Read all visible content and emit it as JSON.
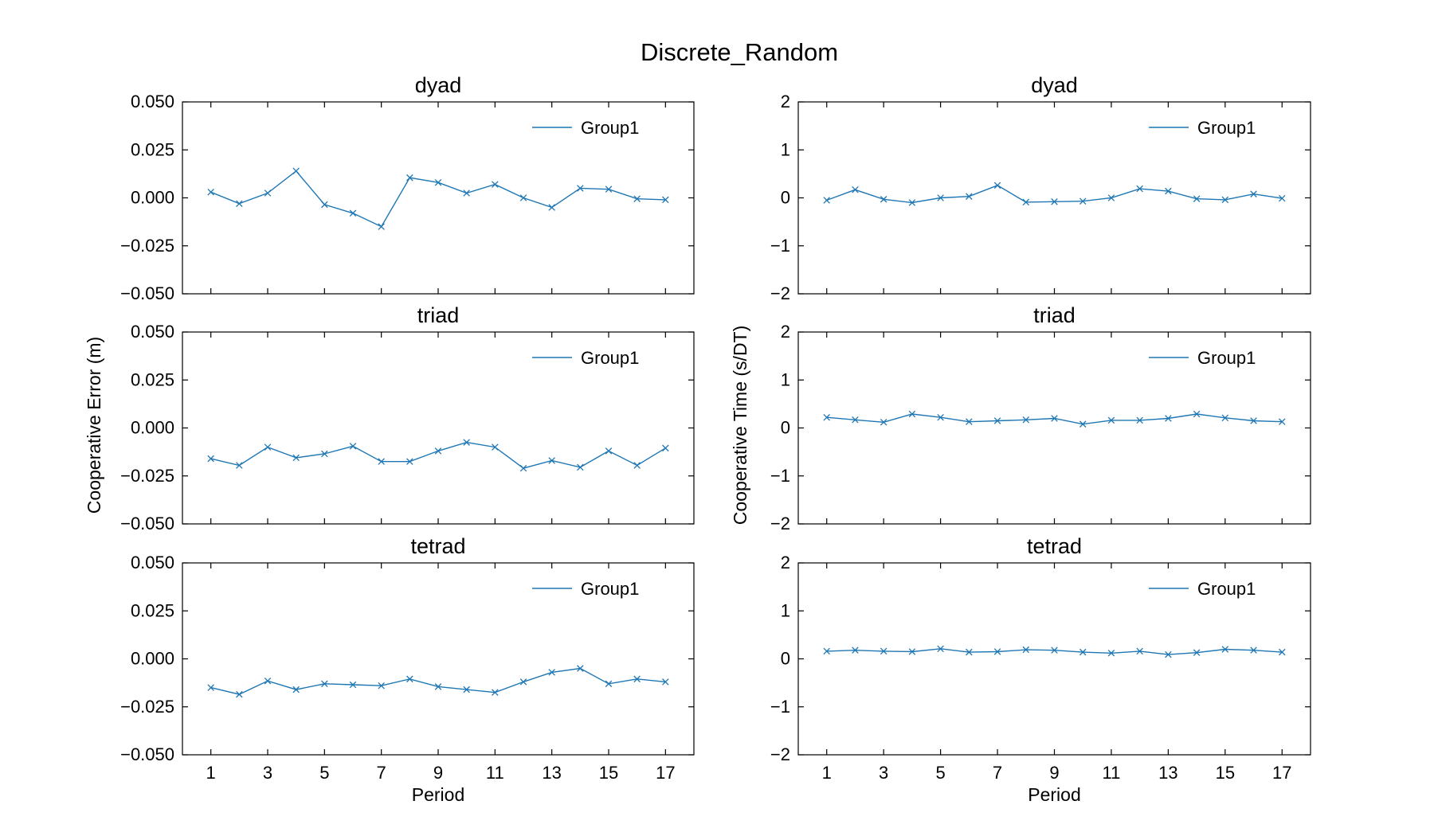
{
  "figure": {
    "title": "Discrete_Random",
    "left_ylabel": "Cooperative Error (m)",
    "right_ylabel": "Cooperative Time (s/DT)",
    "xlabel": "Period"
  },
  "colors": {
    "series": "#1f77b4",
    "axes": "#000000",
    "background": "#ffffff"
  },
  "chart_data": [
    {
      "type": "line",
      "title": "dyad",
      "ylabel": "Cooperative Error (m)",
      "xlabel": "",
      "ylim": [
        -0.05,
        0.05
      ],
      "yticks": [
        0.05,
        0.025,
        0.0,
        -0.025,
        -0.05
      ],
      "ytick_labels": [
        "0.050",
        "0.025",
        "0.000",
        "−0.025",
        "−0.050"
      ],
      "xlim": [
        0,
        18
      ],
      "xticks": [
        1,
        3,
        5,
        7,
        9,
        11,
        13,
        15,
        17
      ],
      "show_xtick_labels": false,
      "grid": false,
      "legend": "top-right",
      "marker": "x",
      "series": [
        {
          "name": "Group1",
          "x": [
            1,
            2,
            3,
            4,
            5,
            6,
            7,
            8,
            9,
            10,
            11,
            12,
            13,
            14,
            15,
            16,
            17
          ],
          "y": [
            0.003,
            -0.003,
            0.0025,
            0.014,
            -0.0035,
            -0.008,
            -0.015,
            0.0105,
            0.008,
            0.0025,
            0.007,
            0.0,
            -0.005,
            0.005,
            0.0045,
            -0.0005,
            -0.001
          ]
        }
      ]
    },
    {
      "type": "line",
      "title": "dyad",
      "ylabel": "Cooperative Time (s/DT)",
      "xlabel": "",
      "ylim": [
        -2,
        2
      ],
      "yticks": [
        2,
        1,
        0,
        -1,
        -2
      ],
      "ytick_labels": [
        "2",
        "1",
        "0",
        "−1",
        "−2"
      ],
      "xlim": [
        0,
        18
      ],
      "xticks": [
        1,
        3,
        5,
        7,
        9,
        11,
        13,
        15,
        17
      ],
      "show_xtick_labels": false,
      "grid": false,
      "legend": "top-right",
      "marker": "x",
      "series": [
        {
          "name": "Group1",
          "x": [
            1,
            2,
            3,
            4,
            5,
            6,
            7,
            8,
            9,
            10,
            11,
            12,
            13,
            14,
            15,
            16,
            17
          ],
          "y": [
            -0.05,
            0.17,
            -0.03,
            -0.1,
            0.0,
            0.03,
            0.26,
            -0.09,
            -0.08,
            -0.07,
            0.0,
            0.19,
            0.14,
            -0.02,
            -0.04,
            0.08,
            -0.01
          ]
        }
      ]
    },
    {
      "type": "line",
      "title": "triad",
      "ylabel": "Cooperative Error (m)",
      "xlabel": "",
      "ylim": [
        -0.05,
        0.05
      ],
      "yticks": [
        0.05,
        0.025,
        0.0,
        -0.025,
        -0.05
      ],
      "ytick_labels": [
        "0.050",
        "0.025",
        "0.000",
        "−0.025",
        "−0.050"
      ],
      "xlim": [
        0,
        18
      ],
      "xticks": [
        1,
        3,
        5,
        7,
        9,
        11,
        13,
        15,
        17
      ],
      "show_xtick_labels": false,
      "grid": false,
      "legend": "top-right",
      "marker": "x",
      "series": [
        {
          "name": "Group1",
          "x": [
            1,
            2,
            3,
            4,
            5,
            6,
            7,
            8,
            9,
            10,
            11,
            12,
            13,
            14,
            15,
            16,
            17
          ],
          "y": [
            -0.016,
            -0.0195,
            -0.01,
            -0.0155,
            -0.0135,
            -0.0095,
            -0.0175,
            -0.0175,
            -0.012,
            -0.0075,
            -0.01,
            -0.021,
            -0.017,
            -0.0205,
            -0.012,
            -0.0195,
            -0.0105
          ]
        }
      ]
    },
    {
      "type": "line",
      "title": "triad",
      "ylabel": "Cooperative Time (s/DT)",
      "xlabel": "",
      "ylim": [
        -2,
        2
      ],
      "yticks": [
        2,
        1,
        0,
        -1,
        -2
      ],
      "ytick_labels": [
        "2",
        "1",
        "0",
        "−1",
        "−2"
      ],
      "xlim": [
        0,
        18
      ],
      "xticks": [
        1,
        3,
        5,
        7,
        9,
        11,
        13,
        15,
        17
      ],
      "show_xtick_labels": false,
      "grid": false,
      "legend": "top-right",
      "marker": "x",
      "series": [
        {
          "name": "Group1",
          "x": [
            1,
            2,
            3,
            4,
            5,
            6,
            7,
            8,
            9,
            10,
            11,
            12,
            13,
            14,
            15,
            16,
            17
          ],
          "y": [
            0.22,
            0.17,
            0.12,
            0.29,
            0.22,
            0.13,
            0.15,
            0.17,
            0.2,
            0.08,
            0.16,
            0.16,
            0.2,
            0.29,
            0.21,
            0.15,
            0.13
          ]
        }
      ]
    },
    {
      "type": "line",
      "title": "tetrad",
      "ylabel": "Cooperative Error (m)",
      "xlabel": "Period",
      "ylim": [
        -0.05,
        0.05
      ],
      "yticks": [
        0.05,
        0.025,
        0.0,
        -0.025,
        -0.05
      ],
      "ytick_labels": [
        "0.050",
        "0.025",
        "0.000",
        "−0.025",
        "−0.050"
      ],
      "xlim": [
        0,
        18
      ],
      "xticks": [
        1,
        3,
        5,
        7,
        9,
        11,
        13,
        15,
        17
      ],
      "show_xtick_labels": true,
      "grid": false,
      "legend": "top-right",
      "marker": "x",
      "series": [
        {
          "name": "Group1",
          "x": [
            1,
            2,
            3,
            4,
            5,
            6,
            7,
            8,
            9,
            10,
            11,
            12,
            13,
            14,
            15,
            16,
            17
          ],
          "y": [
            -0.015,
            -0.0185,
            -0.0115,
            -0.016,
            -0.013,
            -0.0135,
            -0.014,
            -0.0105,
            -0.0145,
            -0.016,
            -0.0175,
            -0.012,
            -0.007,
            -0.005,
            -0.013,
            -0.0105,
            -0.012
          ]
        }
      ]
    },
    {
      "type": "line",
      "title": "tetrad",
      "ylabel": "Cooperative Time (s/DT)",
      "xlabel": "Period",
      "ylim": [
        -2,
        2
      ],
      "yticks": [
        2,
        1,
        0,
        -1,
        -2
      ],
      "ytick_labels": [
        "2",
        "1",
        "0",
        "−1",
        "−2"
      ],
      "xlim": [
        0,
        18
      ],
      "xticks": [
        1,
        3,
        5,
        7,
        9,
        11,
        13,
        15,
        17
      ],
      "show_xtick_labels": true,
      "grid": false,
      "legend": "top-right",
      "marker": "x",
      "series": [
        {
          "name": "Group1",
          "x": [
            1,
            2,
            3,
            4,
            5,
            6,
            7,
            8,
            9,
            10,
            11,
            12,
            13,
            14,
            15,
            16,
            17
          ],
          "y": [
            0.16,
            0.18,
            0.16,
            0.15,
            0.21,
            0.14,
            0.15,
            0.19,
            0.18,
            0.14,
            0.12,
            0.16,
            0.09,
            0.13,
            0.2,
            0.18,
            0.14
          ]
        }
      ]
    }
  ]
}
